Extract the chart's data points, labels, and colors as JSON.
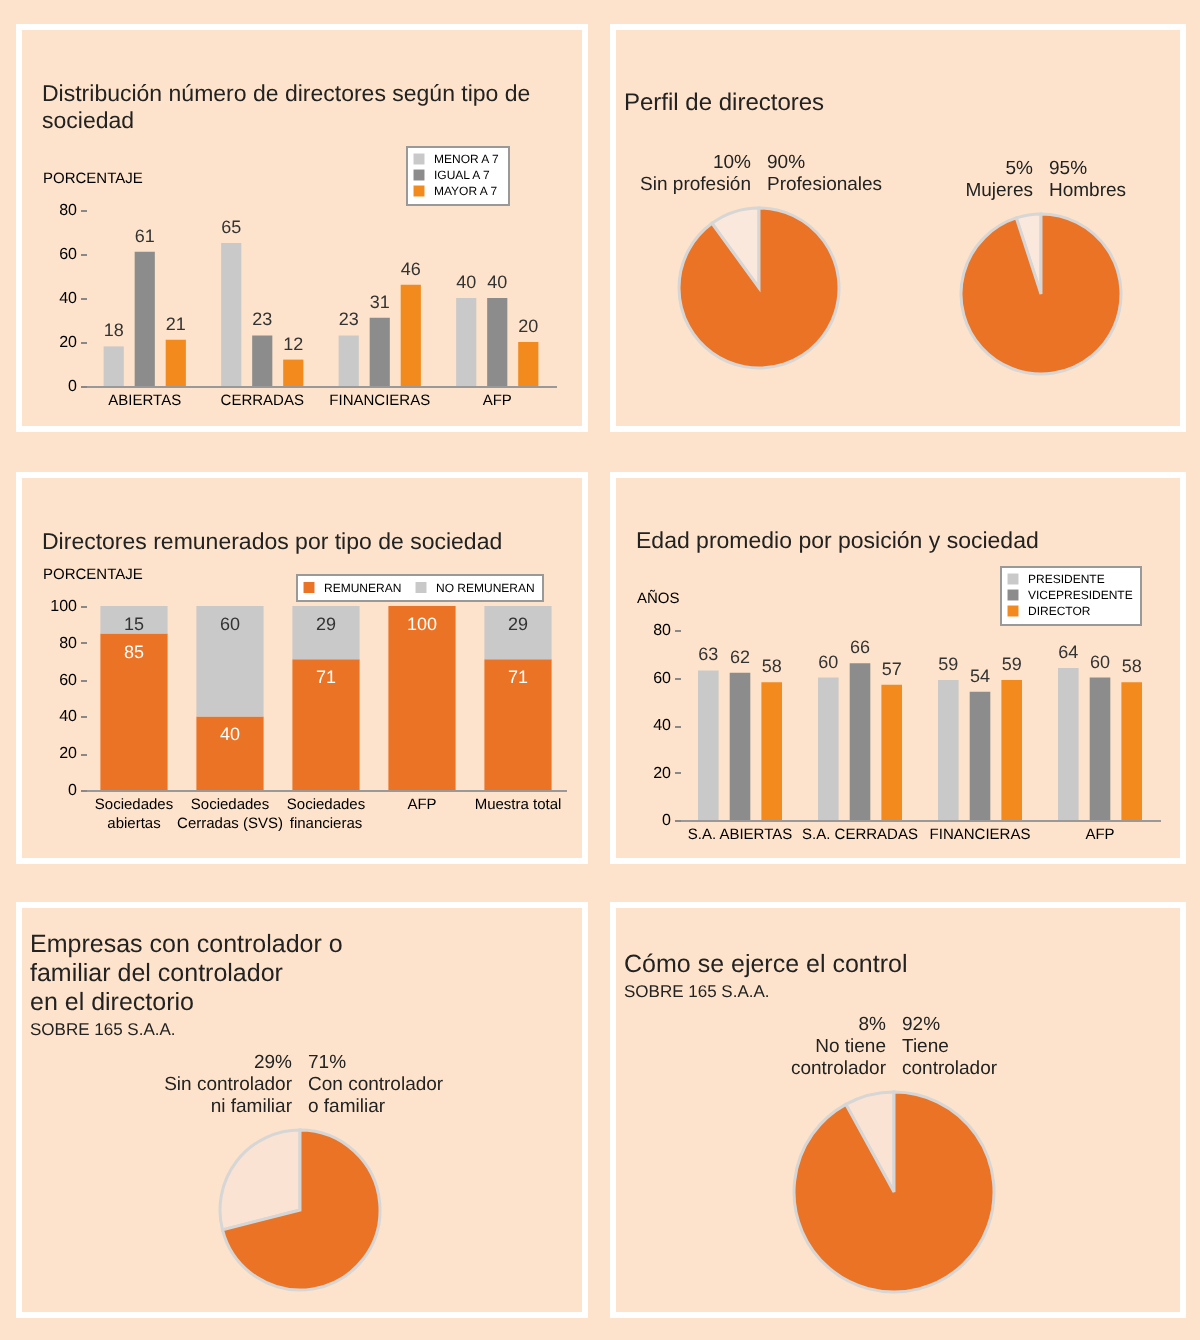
{
  "chart_data": [
    {
      "type": "bar",
      "title": "Distribución número de directores según tipo de sociedad",
      "ylabel": "PORCENTAJE",
      "categories": [
        "ABIERTAS",
        "CERRADAS",
        "FINANCIERAS",
        "AFP"
      ],
      "series": [
        {
          "name": "MENOR A 7",
          "color": "#c9c9c9",
          "values": [
            18,
            65,
            23,
            40
          ]
        },
        {
          "name": "IGUAL A 7",
          "color": "#8c8c8c",
          "values": [
            61,
            23,
            31,
            40
          ]
        },
        {
          "name": "MAYOR A 7",
          "color": "#f28a1e",
          "values": [
            21,
            12,
            46,
            20
          ]
        }
      ],
      "ylim": [
        0,
        80
      ],
      "yticks": [
        0,
        20,
        40,
        60,
        80
      ],
      "data_labels": true,
      "legend": "top right"
    },
    {
      "type": "pie",
      "title": "Perfil de directores",
      "categories": [
        "Sin profesión",
        "Profesionales"
      ],
      "values": [
        10,
        90
      ],
      "colors": [
        "#fbe8dc",
        "#ea7325"
      ],
      "value_labels": [
        "10%",
        "90%"
      ]
    },
    {
      "type": "pie",
      "categories": [
        "Mujeres",
        "Hombres"
      ],
      "values": [
        5,
        95
      ],
      "colors": [
        "#fbe8dc",
        "#ea7325"
      ],
      "value_labels": [
        "5%",
        "95%"
      ]
    },
    {
      "type": "bar",
      "stacked": true,
      "title": "Directores remunerados por tipo de sociedad",
      "ylabel": "PORCENTAJE",
      "categories": [
        "Sociedades abiertas",
        "Sociedades Cerradas (SVS)",
        "Sociedades financieras",
        "AFP",
        "Muestra total"
      ],
      "series": [
        {
          "name": "REMUNERAN",
          "color": "#ea7325",
          "values": [
            85,
            40,
            71,
            100,
            71
          ]
        },
        {
          "name": "NO REMUNERAN",
          "color": "#c9c9c9",
          "values": [
            15,
            60,
            29,
            null,
            29
          ]
        }
      ],
      "ylim": [
        0,
        100
      ],
      "yticks": [
        0,
        20,
        40,
        60,
        80,
        100
      ],
      "data_labels": true,
      "legend": "top right"
    },
    {
      "type": "bar",
      "title": "Edad promedio por posición y sociedad",
      "ylabel": "AÑOS",
      "categories": [
        "S.A. ABIERTAS",
        "S.A. CERRADAS",
        "FINANCIERAS",
        "AFP"
      ],
      "series": [
        {
          "name": "PRESIDENTE",
          "color": "#c9c9c9",
          "values": [
            63,
            60,
            59,
            64
          ]
        },
        {
          "name": "VICEPRESIDENTE",
          "color": "#8c8c8c",
          "values": [
            62,
            66,
            54,
            60
          ]
        },
        {
          "name": "DIRECTOR",
          "color": "#f28a1e",
          "values": [
            58,
            57,
            59,
            58
          ]
        }
      ],
      "ylim": [
        0,
        80
      ],
      "yticks": [
        0,
        20,
        40,
        60,
        80
      ],
      "data_labels": true,
      "legend": "top right"
    },
    {
      "type": "pie",
      "title": "Empresas con controlador o familiar del controlador en el directorio",
      "subtitle": "SOBRE 165 S.A.A.",
      "categories": [
        "Sin controlador ni familiar",
        "Con controlador o familiar"
      ],
      "values": [
        29,
        71
      ],
      "colors": [
        "#fbe3d4",
        "#ea7325"
      ],
      "value_labels": [
        "29%",
        "71%"
      ]
    },
    {
      "type": "pie",
      "title": "Cómo se ejerce el control",
      "subtitle": "SOBRE 165 S.A.A.",
      "categories": [
        "No tiene controlador",
        "Tiene controlador"
      ],
      "values": [
        8,
        92
      ],
      "colors": [
        "#fbe3d4",
        "#ea7325"
      ],
      "value_labels": [
        "8%",
        "92%"
      ]
    }
  ]
}
